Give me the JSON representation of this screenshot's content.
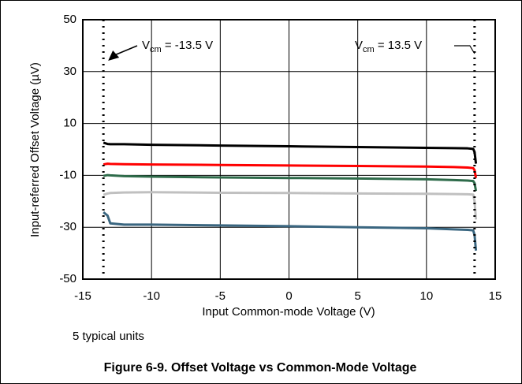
{
  "chart_data": {
    "type": "line",
    "xlabel": "Input Common-mode Voltage (V)",
    "ylabel": "Input-referred Offset Voltage (µV)",
    "note": "5 typical units",
    "caption": "Figure 6-9. Offset Voltage vs Common-Mode Voltage",
    "xlim": [
      -15,
      15
    ],
    "xticks": [
      -15,
      -10,
      -5,
      0,
      5,
      10,
      15
    ],
    "ylim": [
      -50,
      50
    ],
    "yticks": [
      -50,
      -30,
      -10,
      10,
      30,
      50
    ],
    "grid": true,
    "annotations": [
      {
        "x": -13.5,
        "label": [
          "V",
          "cm",
          " = -13.5 V"
        ]
      },
      {
        "x": 13.5,
        "label": [
          "V",
          "cm",
          " = 13.5 V"
        ]
      }
    ],
    "x": [
      -13.5,
      -13.2,
      -13,
      -12,
      -10,
      -5,
      0,
      5,
      10,
      12,
      13,
      13.4,
      13.5,
      13.6
    ],
    "series": [
      {
        "color": "#000000",
        "values": [
          2.6,
          2.1,
          2,
          2,
          1.8,
          1.5,
          1.2,
          0.9,
          0.6,
          0.5,
          0.4,
          0.2,
          -1,
          -5.5
        ]
      },
      {
        "color": "#ff0000",
        "values": [
          -5.8,
          -5.5,
          -5.6,
          -5.7,
          -5.8,
          -6,
          -6.2,
          -6.4,
          -6.6,
          -6.8,
          -7,
          -7.2,
          -8,
          -11
        ]
      },
      {
        "color": "#2e6b4a",
        "values": [
          -10.2,
          -9.9,
          -10,
          -10.3,
          -10.5,
          -10.8,
          -11,
          -11.2,
          -11.5,
          -11.8,
          -12,
          -12.2,
          -13,
          -16
        ]
      },
      {
        "color": "#c0c0c0",
        "values": [
          -17.5,
          -17,
          -16.8,
          -16.6,
          -16.5,
          -16.7,
          -16.8,
          -17,
          -17.1,
          -17.2,
          -17.3,
          -17.4,
          -20,
          -27
        ]
      },
      {
        "color": "#3a6680",
        "values": [
          -24.2,
          -25.5,
          -28.5,
          -29,
          -29,
          -29.3,
          -29.6,
          -30,
          -30.4,
          -30.8,
          -31,
          -31.2,
          -33,
          -39
        ]
      }
    ]
  }
}
